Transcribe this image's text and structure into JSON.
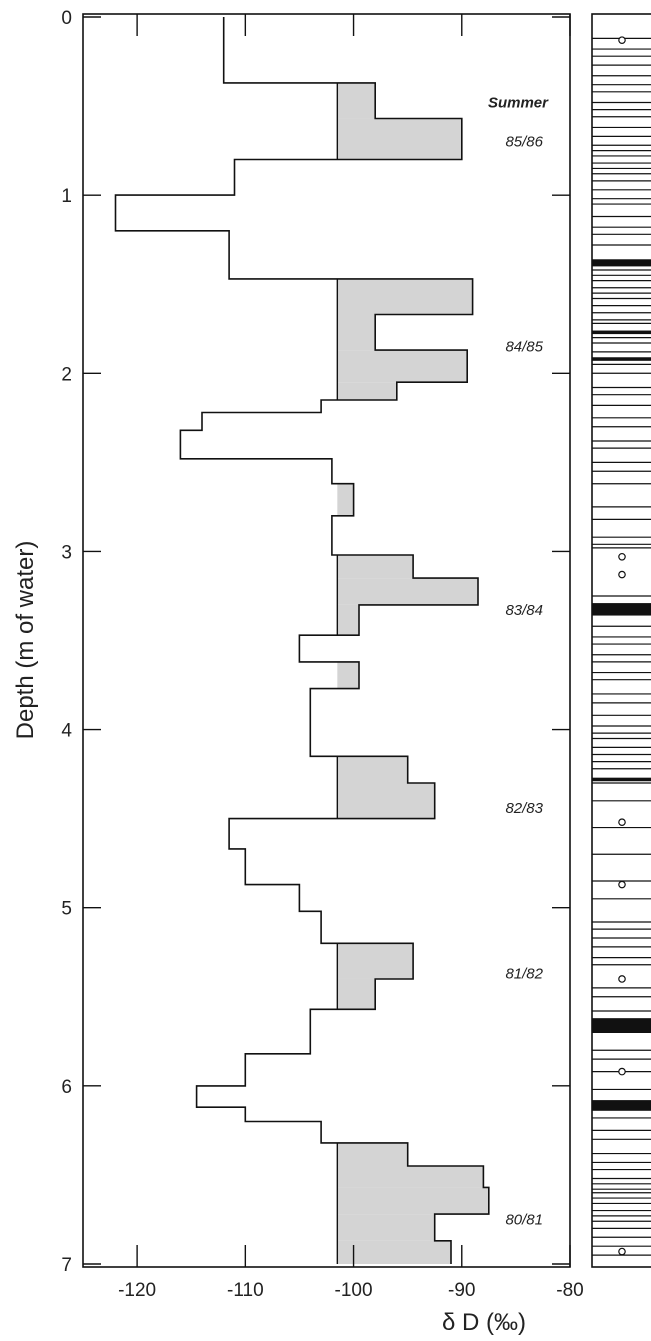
{
  "chart_data": {
    "type": "line",
    "subtype": "stepped depth profile",
    "xlabel": "δ D (‰)",
    "ylabel": "Depth (m of water)",
    "xlim": [
      -125,
      -80
    ],
    "ylim": [
      0,
      7
    ],
    "x_ticks": [
      -120,
      -110,
      -100,
      -90,
      -80
    ],
    "y_ticks": [
      0,
      1,
      2,
      3,
      4,
      5,
      6,
      7
    ],
    "y_inverted": true,
    "grid": false,
    "steps": [
      {
        "top": 0.0,
        "bottom": 0.37,
        "x": -112.0
      },
      {
        "top": 0.37,
        "bottom": 0.57,
        "x": -98.0
      },
      {
        "top": 0.57,
        "bottom": 0.8,
        "x": -90.0
      },
      {
        "top": 0.8,
        "bottom": 1.0,
        "x": -111.0
      },
      {
        "top": 1.0,
        "bottom": 1.2,
        "x": -122.0
      },
      {
        "top": 1.2,
        "bottom": 1.47,
        "x": -111.5
      },
      {
        "top": 1.47,
        "bottom": 1.67,
        "x": -89.0
      },
      {
        "top": 1.67,
        "bottom": 1.87,
        "x": -98.0
      },
      {
        "top": 1.87,
        "bottom": 2.05,
        "x": -89.5
      },
      {
        "top": 2.05,
        "bottom": 2.15,
        "x": -96.0
      },
      {
        "top": 2.15,
        "bottom": 2.22,
        "x": -103.0
      },
      {
        "top": 2.22,
        "bottom": 2.32,
        "x": -114.0
      },
      {
        "top": 2.32,
        "bottom": 2.48,
        "x": -116.0
      },
      {
        "top": 2.48,
        "bottom": 2.62,
        "x": -102.0
      },
      {
        "top": 2.62,
        "bottom": 2.8,
        "x": -100.0
      },
      {
        "top": 2.8,
        "bottom": 3.02,
        "x": -102.0
      },
      {
        "top": 3.02,
        "bottom": 3.15,
        "x": -94.5
      },
      {
        "top": 3.15,
        "bottom": 3.3,
        "x": -88.5
      },
      {
        "top": 3.3,
        "bottom": 3.47,
        "x": -99.5
      },
      {
        "top": 3.47,
        "bottom": 3.62,
        "x": -105.0
      },
      {
        "top": 3.62,
        "bottom": 3.77,
        "x": -99.5
      },
      {
        "top": 3.77,
        "bottom": 4.15,
        "x": -104.0
      },
      {
        "top": 4.15,
        "bottom": 4.3,
        "x": -95.0
      },
      {
        "top": 4.3,
        "bottom": 4.5,
        "x": -92.5
      },
      {
        "top": 4.5,
        "bottom": 4.67,
        "x": -111.5
      },
      {
        "top": 4.67,
        "bottom": 4.87,
        "x": -110.0
      },
      {
        "top": 4.87,
        "bottom": 5.02,
        "x": -105.0
      },
      {
        "top": 5.02,
        "bottom": 5.2,
        "x": -103.0
      },
      {
        "top": 5.2,
        "bottom": 5.4,
        "x": -94.5
      },
      {
        "top": 5.4,
        "bottom": 5.57,
        "x": -98.0
      },
      {
        "top": 5.57,
        "bottom": 5.82,
        "x": -104.0
      },
      {
        "top": 5.82,
        "bottom": 6.0,
        "x": -110.0
      },
      {
        "top": 6.0,
        "bottom": 6.12,
        "x": -114.5
      },
      {
        "top": 6.12,
        "bottom": 6.2,
        "x": -110.0
      },
      {
        "top": 6.2,
        "bottom": 6.32,
        "x": -103.0
      },
      {
        "top": 6.32,
        "bottom": 6.45,
        "x": -95.0
      },
      {
        "top": 6.45,
        "bottom": 6.57,
        "x": -88.0
      },
      {
        "top": 6.57,
        "bottom": 6.72,
        "x": -87.5
      },
      {
        "top": 6.72,
        "bottom": 6.87,
        "x": -92.5
      },
      {
        "top": 6.87,
        "bottom": 7.0,
        "x": -91.0
      }
    ],
    "summer_shading_threshold": -101.5,
    "summer_bands": [
      {
        "label": "85/86",
        "top": 0.37,
        "bottom": 0.8
      },
      {
        "label": "84/85",
        "top": 1.47,
        "bottom": 2.15
      },
      {
        "label": "83/84",
        "top": 3.02,
        "bottom": 3.47
      },
      {
        "label": "82/83",
        "top": 4.15,
        "bottom": 4.5
      },
      {
        "label": "81/82",
        "top": 5.2,
        "bottom": 5.57
      },
      {
        "label": "80/81",
        "top": 6.32,
        "bottom": 7.0
      }
    ],
    "season_labels": [
      {
        "text": "85/86",
        "depth": 0.7
      },
      {
        "text": "84/85",
        "depth": 1.85
      },
      {
        "text": "83/84",
        "depth": 3.33
      },
      {
        "text": "82/83",
        "depth": 4.44
      },
      {
        "text": "81/82",
        "depth": 5.37
      },
      {
        "text": "80/81",
        "depth": 6.75
      }
    ],
    "summer_header": {
      "text": "Summer",
      "depth": 0.48
    },
    "stratigraphy": {
      "thin_layers": [
        0.12,
        0.18,
        0.22,
        0.27,
        0.33,
        0.38,
        0.42,
        0.48,
        0.52,
        0.56,
        0.62,
        0.67,
        0.72,
        0.75,
        0.78,
        0.82,
        0.85,
        0.88,
        0.92,
        0.97,
        1.02,
        1.05,
        1.12,
        1.18,
        1.22,
        1.28,
        1.42,
        1.45,
        1.48,
        1.52,
        1.55,
        1.58,
        1.62,
        1.66,
        1.7,
        1.72,
        1.8,
        1.83,
        1.88,
        1.95,
        2.0,
        2.08,
        2.12,
        2.18,
        2.25,
        2.3,
        2.38,
        2.42,
        2.5,
        2.55,
        2.62,
        2.75,
        2.82,
        2.92,
        2.96,
        2.98,
        3.25,
        3.42,
        3.48,
        3.52,
        3.58,
        3.62,
        3.68,
        3.72,
        3.8,
        3.85,
        3.92,
        3.98,
        4.02,
        4.05,
        4.1,
        4.14,
        4.18,
        4.22,
        4.3,
        4.4,
        4.55,
        4.7,
        4.85,
        4.95,
        5.08,
        5.12,
        5.17,
        5.22,
        5.28,
        5.32,
        5.45,
        5.5,
        5.58,
        5.7,
        5.8,
        5.85,
        5.92,
        6.02,
        6.18,
        6.25,
        6.3,
        6.38,
        6.43,
        6.47,
        6.52,
        6.55,
        6.58,
        6.6,
        6.63,
        6.66,
        6.7,
        6.73,
        6.76,
        6.8,
        6.85,
        6.9,
        6.95
      ],
      "thick_layers": [
        {
          "top": 1.36,
          "bottom": 1.4
        },
        {
          "top": 1.76,
          "bottom": 1.78
        },
        {
          "top": 1.91,
          "bottom": 1.93
        },
        {
          "top": 3.29,
          "bottom": 3.36
        },
        {
          "top": 4.27,
          "bottom": 4.29
        },
        {
          "top": 5.62,
          "bottom": 5.7
        },
        {
          "top": 6.08,
          "bottom": 6.14
        }
      ],
      "markers": [
        0.13,
        3.03,
        3.13,
        4.52,
        4.87,
        5.4,
        5.92,
        6.93
      ]
    }
  }
}
